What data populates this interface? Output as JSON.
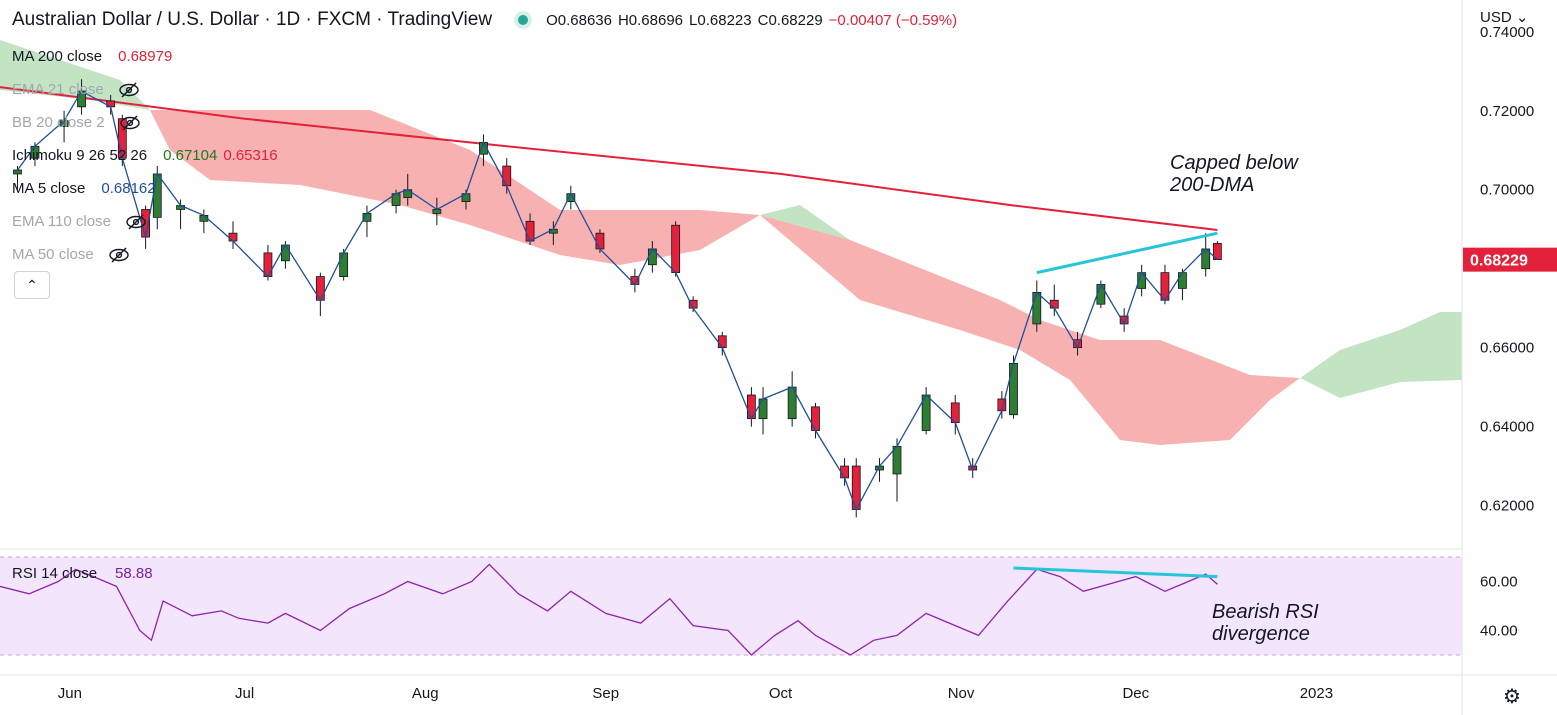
{
  "header": {
    "title": "Australian Dollar / U.S. Dollar · 1D · FXCM · TradingView",
    "ohlc": {
      "open": "O0.68636",
      "high": "H0.68696",
      "low": "L0.68223",
      "close": "C0.68229",
      "change": "−0.00407 (−0.59%)"
    }
  },
  "indicators": [
    {
      "name": "MA 200 close",
      "value": "0.68979",
      "value2": "",
      "color": "#e3213a",
      "hidden": false
    },
    {
      "name": "EMA 21 close",
      "value": "",
      "value2": "",
      "color": "#a3a6af",
      "hidden": true
    },
    {
      "name": "BB 20 close 2",
      "value": "",
      "value2": "",
      "color": "#a3a6af",
      "hidden": true
    },
    {
      "name": "Ichimoku 9 26 52 26",
      "value": "0.67104",
      "value2": "0.65316",
      "color": "#1b7a1b",
      "color2": "#e3213a",
      "hidden": false
    },
    {
      "name": "MA 5 close",
      "value": "0.68162",
      "value2": "",
      "color": "#1f4e9c",
      "hidden": false
    },
    {
      "name": "EMA 110 close",
      "value": "",
      "value2": "",
      "color": "#a3a6af",
      "hidden": true
    },
    {
      "name": "MA 50 close",
      "value": "",
      "value2": "",
      "color": "#a3a6af",
      "hidden": true
    }
  ],
  "rsi": {
    "name": "RSI 14 close",
    "value": "58.88"
  },
  "axis": {
    "currency": "USD",
    "current_price": "0.68229"
  },
  "annotations": {
    "top_line1": "Capped below",
    "top_line2": "200-DMA",
    "rsi_line1": "Bearish RSI",
    "rsi_line2": "divergence"
  },
  "chart_data": {
    "type": "candlestick",
    "instrument": "AUDUSD",
    "price_axis": {
      "ticks": [
        "0.74000",
        "0.72000",
        "0.70000",
        "0.66000",
        "0.64000",
        "0.62000"
      ],
      "ylim": [
        0.61,
        0.743
      ]
    },
    "rsi_axis": {
      "ticks": [
        "60.00",
        "40.00"
      ],
      "ylim": [
        25,
        75
      ],
      "band": [
        30,
        70
      ]
    },
    "x_ticks": [
      "Jun",
      "Jul",
      "Aug",
      "Sep",
      "Oct",
      "Nov",
      "Dec",
      "2023"
    ],
    "x_tick_dates": [
      "2022-06-01",
      "2022-07-01",
      "2022-08-01",
      "2022-09-01",
      "2022-10-01",
      "2022-11-01",
      "2022-12-01",
      "2023-01-01"
    ],
    "x_range_dates": [
      "2022-05-20",
      "2023-01-26"
    ],
    "candles_sampled": [
      [
        "2022-05-23",
        0.704,
        0.706,
        0.7,
        0.705
      ],
      [
        "2022-05-26",
        0.708,
        0.712,
        0.706,
        0.711
      ],
      [
        "2022-05-31",
        0.716,
        0.72,
        0.712,
        0.7175
      ],
      [
        "2022-06-03",
        0.721,
        0.728,
        0.719,
        0.725
      ],
      [
        "2022-06-08",
        0.7225,
        0.724,
        0.719,
        0.721
      ],
      [
        "2022-06-10",
        0.718,
        0.719,
        0.706,
        0.708
      ],
      [
        "2022-06-14",
        0.695,
        0.696,
        0.685,
        0.688
      ],
      [
        "2022-06-16",
        0.693,
        0.706,
        0.69,
        0.704
      ],
      [
        "2022-06-20",
        0.695,
        0.6975,
        0.69,
        0.696
      ],
      [
        "2022-06-24",
        0.692,
        0.695,
        0.689,
        0.6935
      ],
      [
        "2022-06-29",
        0.689,
        0.692,
        0.685,
        0.687
      ],
      [
        "2022-07-05",
        0.684,
        0.686,
        0.677,
        0.678
      ],
      [
        "2022-07-08",
        0.682,
        0.687,
        0.68,
        0.686
      ],
      [
        "2022-07-14",
        0.678,
        0.679,
        0.668,
        0.672
      ],
      [
        "2022-07-18",
        0.678,
        0.685,
        0.677,
        0.684
      ],
      [
        "2022-07-22",
        0.692,
        0.696,
        0.688,
        0.694
      ],
      [
        "2022-07-27",
        0.696,
        0.7,
        0.694,
        0.699
      ],
      [
        "2022-07-29",
        0.698,
        0.704,
        0.696,
        0.7
      ],
      [
        "2022-08-03",
        0.694,
        0.698,
        0.691,
        0.695
      ],
      [
        "2022-08-08",
        0.697,
        0.7,
        0.695,
        0.699
      ],
      [
        "2022-08-11",
        0.709,
        0.714,
        0.706,
        0.712
      ],
      [
        "2022-08-15",
        0.706,
        0.708,
        0.699,
        0.701
      ],
      [
        "2022-08-19",
        0.692,
        0.694,
        0.686,
        0.687
      ],
      [
        "2022-08-23",
        0.689,
        0.692,
        0.686,
        0.69
      ],
      [
        "2022-08-26",
        0.697,
        0.701,
        0.695,
        0.699
      ],
      [
        "2022-08-31",
        0.689,
        0.69,
        0.684,
        0.685
      ],
      [
        "2022-09-06",
        0.678,
        0.68,
        0.674,
        0.676
      ],
      [
        "2022-09-09",
        0.681,
        0.687,
        0.679,
        0.685
      ],
      [
        "2022-09-13",
        0.691,
        0.692,
        0.678,
        0.679
      ],
      [
        "2022-09-16",
        0.672,
        0.673,
        0.669,
        0.67
      ],
      [
        "2022-09-21",
        0.663,
        0.664,
        0.658,
        0.66
      ],
      [
        "2022-09-26",
        0.648,
        0.65,
        0.64,
        0.642
      ],
      [
        "2022-09-28",
        0.642,
        0.65,
        0.638,
        0.647
      ],
      [
        "2022-10-03",
        0.642,
        0.654,
        0.64,
        0.65
      ],
      [
        "2022-10-07",
        0.645,
        0.646,
        0.637,
        0.639
      ],
      [
        "2022-10-12",
        0.63,
        0.632,
        0.625,
        0.627
      ],
      [
        "2022-10-14",
        0.63,
        0.632,
        0.617,
        0.619
      ],
      [
        "2022-10-18",
        0.629,
        0.632,
        0.626,
        0.63
      ],
      [
        "2022-10-21",
        0.628,
        0.637,
        0.621,
        0.635
      ],
      [
        "2022-10-26",
        0.639,
        0.65,
        0.638,
        0.648
      ],
      [
        "2022-10-31",
        0.646,
        0.648,
        0.638,
        0.641
      ],
      [
        "2022-11-03",
        0.63,
        0.632,
        0.627,
        0.629
      ],
      [
        "2022-11-08",
        0.647,
        0.649,
        0.642,
        0.644
      ],
      [
        "2022-11-10",
        0.643,
        0.658,
        0.642,
        0.656
      ],
      [
        "2022-11-14",
        0.666,
        0.677,
        0.664,
        0.674
      ],
      [
        "2022-11-17",
        0.672,
        0.676,
        0.668,
        0.67
      ],
      [
        "2022-11-21",
        0.662,
        0.664,
        0.658,
        0.66
      ],
      [
        "2022-11-25",
        0.671,
        0.677,
        0.67,
        0.676
      ],
      [
        "2022-11-29",
        0.668,
        0.67,
        0.664,
        0.666
      ],
      [
        "2022-12-02",
        0.675,
        0.681,
        0.673,
        0.679
      ],
      [
        "2022-12-06",
        0.679,
        0.681,
        0.671,
        0.672
      ],
      [
        "2022-12-09",
        0.675,
        0.68,
        0.672,
        0.679
      ],
      [
        "2022-12-13",
        0.68,
        0.689,
        0.678,
        0.685
      ],
      [
        "2022-12-15",
        0.6864,
        0.687,
        0.6822,
        0.6823
      ]
    ],
    "ma200_points": [
      [
        "2022-05-20",
        0.726
      ],
      [
        "2022-07-01",
        0.718
      ],
      [
        "2022-08-15",
        0.711
      ],
      [
        "2022-10-01",
        0.704
      ],
      [
        "2022-11-10",
        0.696
      ],
      [
        "2022-12-15",
        0.6898
      ]
    ],
    "resistance_line": [
      [
        "2022-11-14",
        0.679
      ],
      [
        "2022-12-15",
        0.689
      ]
    ],
    "rsi_divergence_line": [
      [
        "2022-11-10",
        65.5
      ],
      [
        "2022-12-15",
        62.0
      ]
    ],
    "rsi_points": [
      [
        "2022-05-20",
        58
      ],
      [
        "2022-05-25",
        55
      ],
      [
        "2022-05-30",
        60
      ],
      [
        "2022-06-02",
        65
      ],
      [
        "2022-06-06",
        61
      ],
      [
        "2022-06-09",
        58
      ],
      [
        "2022-06-13",
        40
      ],
      [
        "2022-06-15",
        36
      ],
      [
        "2022-06-17",
        52
      ],
      [
        "2022-06-22",
        46
      ],
      [
        "2022-06-27",
        48
      ],
      [
        "2022-06-30",
        45
      ],
      [
        "2022-07-05",
        43
      ],
      [
        "2022-07-08",
        47
      ],
      [
        "2022-07-14",
        40
      ],
      [
        "2022-07-19",
        49
      ],
      [
        "2022-07-25",
        55
      ],
      [
        "2022-07-29",
        60
      ],
      [
        "2022-08-04",
        55
      ],
      [
        "2022-08-09",
        60
      ],
      [
        "2022-08-12",
        67
      ],
      [
        "2022-08-17",
        55
      ],
      [
        "2022-08-22",
        48
      ],
      [
        "2022-08-26",
        56
      ],
      [
        "2022-09-01",
        47
      ],
      [
        "2022-09-07",
        43
      ],
      [
        "2022-09-12",
        53
      ],
      [
        "2022-09-16",
        42
      ],
      [
        "2022-09-22",
        40
      ],
      [
        "2022-09-26",
        30
      ],
      [
        "2022-09-30",
        38
      ],
      [
        "2022-10-04",
        44
      ],
      [
        "2022-10-07",
        38
      ],
      [
        "2022-10-13",
        30
      ],
      [
        "2022-10-17",
        36
      ],
      [
        "2022-10-21",
        38
      ],
      [
        "2022-10-26",
        47
      ],
      [
        "2022-10-31",
        42
      ],
      [
        "2022-11-04",
        38
      ],
      [
        "2022-11-09",
        52
      ],
      [
        "2022-11-14",
        65
      ],
      [
        "2022-11-18",
        62
      ],
      [
        "2022-11-22",
        56
      ],
      [
        "2022-11-28",
        60
      ],
      [
        "2022-12-01",
        62
      ],
      [
        "2022-12-06",
        56
      ],
      [
        "2022-12-09",
        59
      ],
      [
        "2022-12-13",
        63
      ],
      [
        "2022-12-15",
        58.88
      ]
    ]
  }
}
